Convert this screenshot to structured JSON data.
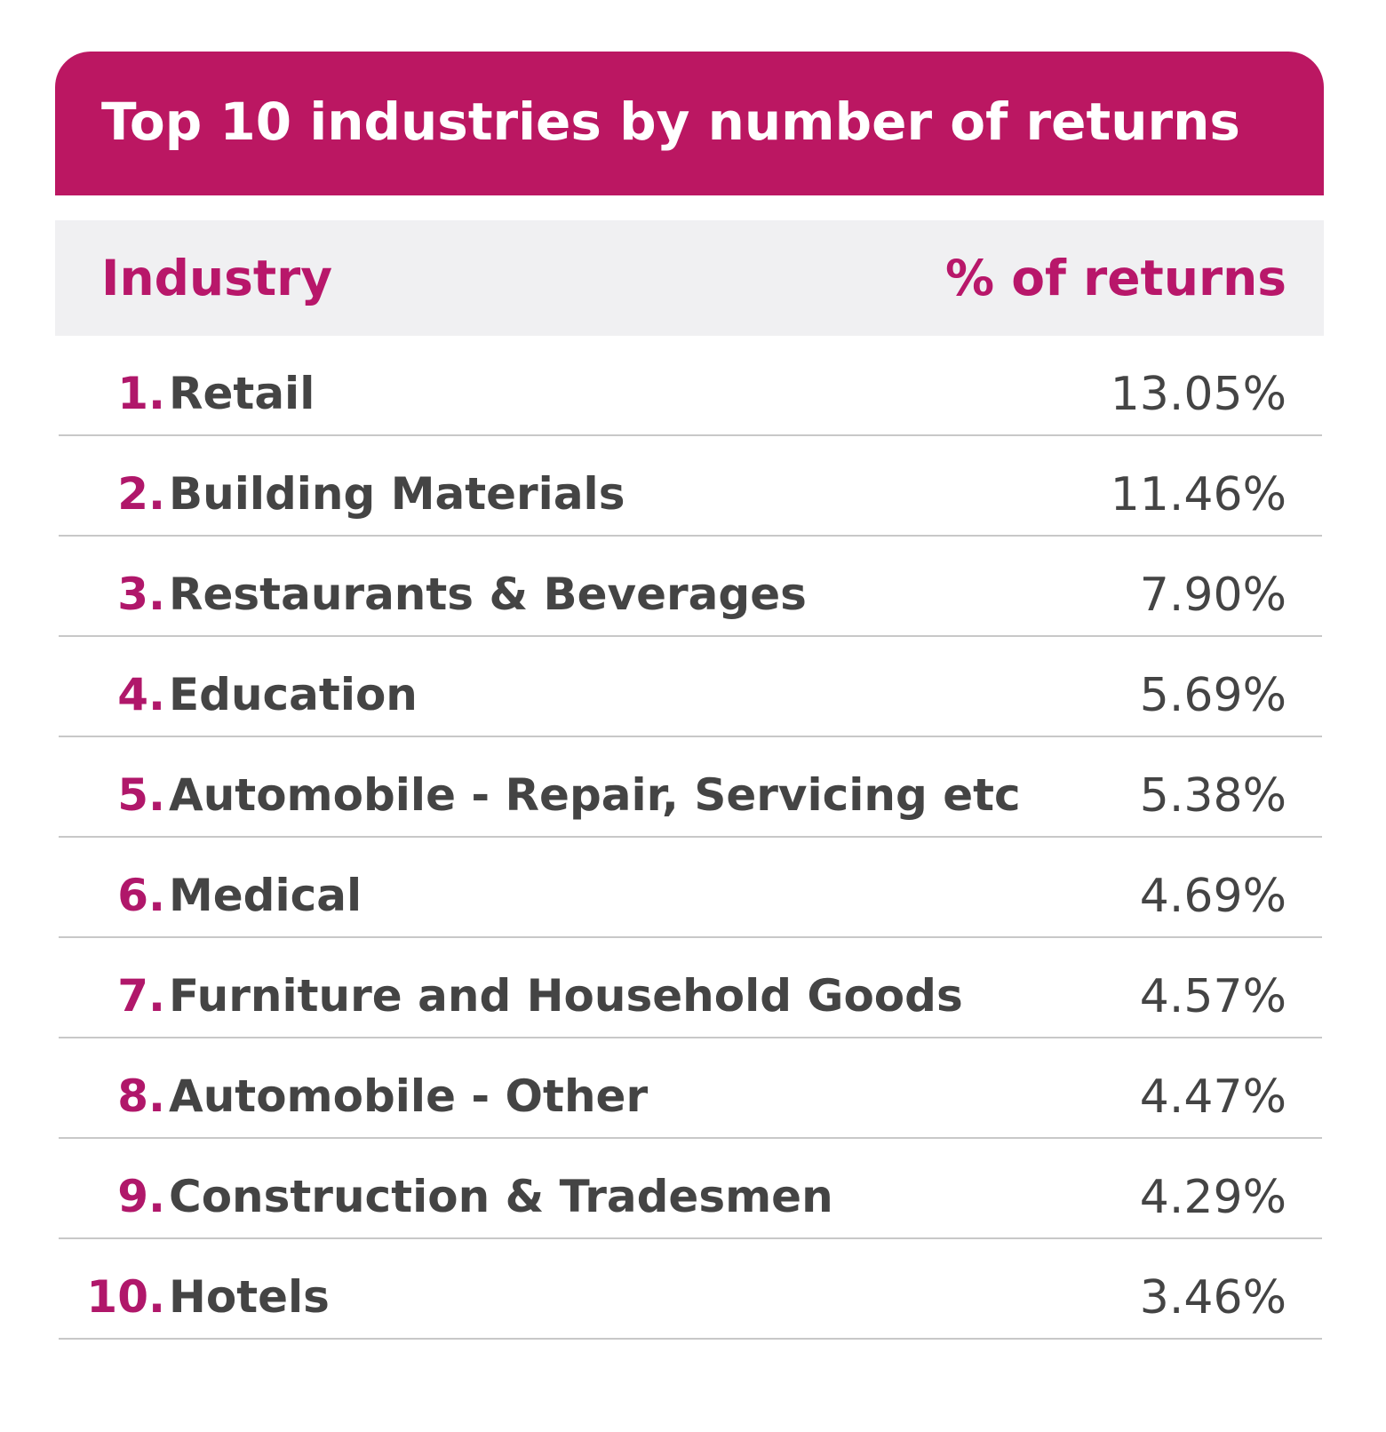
{
  "chart_data": {
    "type": "table",
    "title": "Top 10 industries by number of returns",
    "columns": [
      "Industry",
      "% of returns"
    ],
    "rows": [
      {
        "rank": "1.",
        "industry": "Retail",
        "percent": "13.05%"
      },
      {
        "rank": "2.",
        "industry": "Building Materials",
        "percent": "11.46%"
      },
      {
        "rank": "3.",
        "industry": "Restaurants & Beverages",
        "percent": "7.90%"
      },
      {
        "rank": "4.",
        "industry": "Education",
        "percent": "5.69%"
      },
      {
        "rank": "5.",
        "industry": "Automobile - Repair, Servicing etc",
        "percent": "5.38%"
      },
      {
        "rank": "6.",
        "industry": "Medical",
        "percent": "4.69%"
      },
      {
        "rank": "7.",
        "industry": "Furniture and Household Goods",
        "percent": "4.57%"
      },
      {
        "rank": "8.",
        "industry": "Automobile - Other",
        "percent": "4.47%"
      },
      {
        "rank": "9.",
        "industry": "Construction & Tradesmen",
        "percent": "4.29%"
      },
      {
        "rank": "10.",
        "industry": "Hotels",
        "percent": "3.46%"
      }
    ]
  },
  "colors": {
    "accent": "#bb1762",
    "header_bg": "#f0f0f2",
    "text": "#444444",
    "divider": "#c8c8c8"
  }
}
